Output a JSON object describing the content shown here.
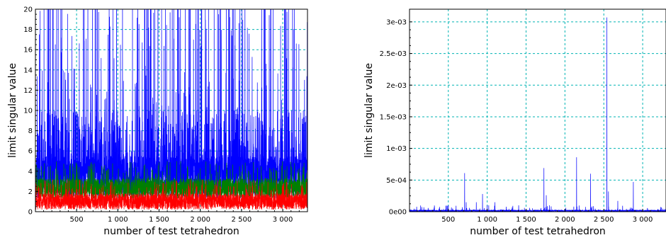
{
  "chart_data": [
    {
      "type": "line",
      "xlabel": "number of test tetrahedron",
      "ylabel": "limit singular value",
      "xlim": [
        1,
        3300
      ],
      "ylim": [
        0,
        20
      ],
      "x_ticks": [
        500,
        1000,
        1500,
        2000,
        2500,
        3000
      ],
      "x_tick_labels": [
        "500",
        "1 000",
        "1 500",
        "2 000",
        "2 500",
        "3 000"
      ],
      "y_ticks": [
        0,
        2,
        4,
        6,
        8,
        10,
        12,
        14,
        16,
        18,
        20
      ],
      "y_tick_labels": [
        "0",
        "2",
        "4",
        "6",
        "8",
        "10",
        "12",
        "14",
        "16",
        "18",
        "20"
      ],
      "grid": true,
      "colors": {
        "grid": "#00b3b3",
        "frame": "#000000"
      },
      "series": [
        {
          "color": "#0000ff",
          "n": 3300,
          "baseline": 3.0,
          "typical_range": [
            1.5,
            8
          ],
          "spike_max": 20,
          "spike_frequency": "frequent, many clipped at 20"
        },
        {
          "color": "#008000",
          "n": 3300,
          "baseline": 2.2,
          "typical_range": [
            1.2,
            3.5
          ],
          "spike_max": 5
        },
        {
          "color": "#ff0000",
          "n": 3300,
          "baseline": 1.0,
          "typical_range": [
            0.2,
            2.0
          ],
          "spike_max": 3.2
        }
      ]
    },
    {
      "type": "line",
      "xlabel": "number of test tetrahedron",
      "ylabel": "limit singular value",
      "xlim": [
        1,
        3300
      ],
      "ylim": [
        0,
        0.0032
      ],
      "x_ticks": [
        500,
        1000,
        1500,
        2000,
        2500,
        3000
      ],
      "x_tick_labels": [
        "500",
        "1 000",
        "1 500",
        "2 000",
        "2 500",
        "3 000"
      ],
      "y_ticks": [
        0,
        0.0005,
        0.001,
        0.0015,
        0.002,
        0.0025,
        0.003
      ],
      "y_tick_labels": [
        "0e00",
        "5e-04",
        "1e-03",
        "1.5e-03",
        "2e-03",
        "2.5e-03",
        "3e-03"
      ],
      "grid": true,
      "colors": {
        "grid": "#00b3b3",
        "frame": "#000000"
      },
      "series": [
        {
          "color": "#0000ff",
          "n": 3300,
          "baseline_max": 4e-05,
          "spikes": [
            {
              "x": 500,
              "y": 0.0001
            },
            {
              "x": 710,
              "y": 0.00061
            },
            {
              "x": 730,
              "y": 0.00015
            },
            {
              "x": 860,
              "y": 0.00015
            },
            {
              "x": 940,
              "y": 0.00028
            },
            {
              "x": 1000,
              "y": 0.0001
            },
            {
              "x": 1020,
              "y": 0.0001
            },
            {
              "x": 1100,
              "y": 0.00015
            },
            {
              "x": 1730,
              "y": 0.00069
            },
            {
              "x": 1760,
              "y": 0.00026
            },
            {
              "x": 1800,
              "y": 0.0001
            },
            {
              "x": 2150,
              "y": 0.00086
            },
            {
              "x": 2330,
              "y": 0.0006
            },
            {
              "x": 2540,
              "y": 0.00307
            },
            {
              "x": 2560,
              "y": 0.00032
            },
            {
              "x": 2680,
              "y": 0.00017
            },
            {
              "x": 2880,
              "y": 0.00047
            }
          ]
        }
      ]
    }
  ]
}
